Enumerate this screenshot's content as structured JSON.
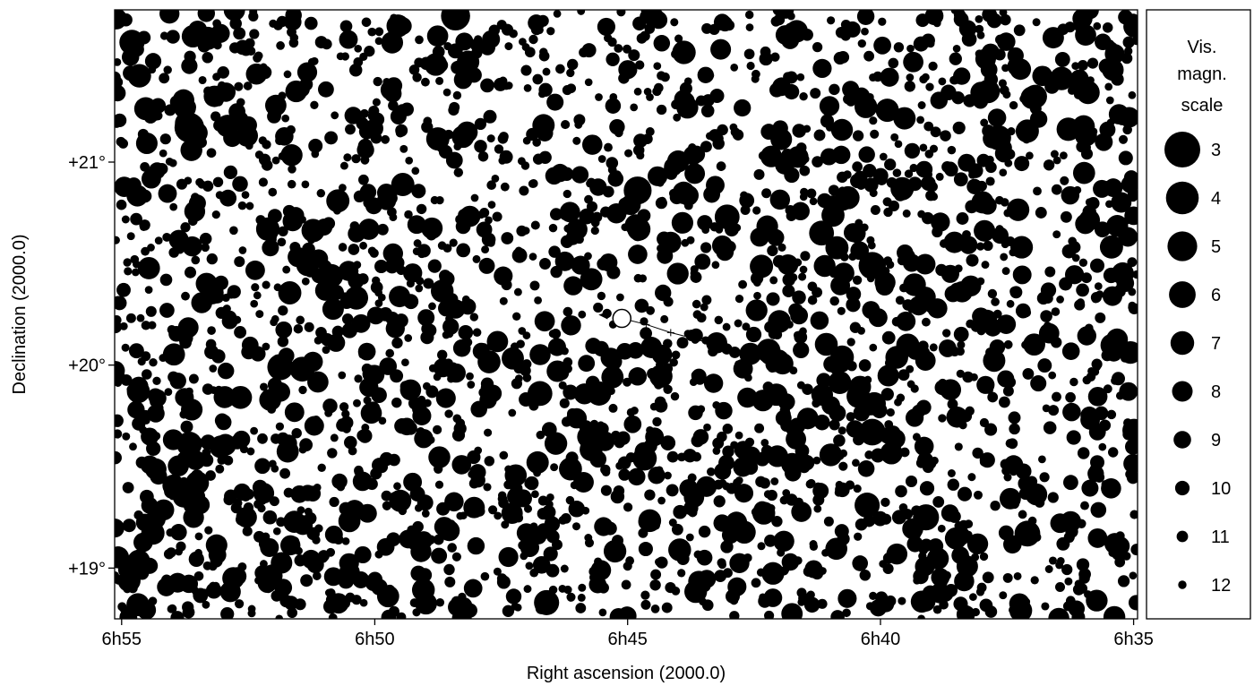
{
  "chart_data": {
    "type": "scatter",
    "title": "",
    "xlabel": "Right ascension (2000.0)",
    "ylabel": "Declination (2000.0)",
    "x_unit": "RA minutes (time)",
    "y_unit": "degrees",
    "xlim": [
      6.919,
      6.582
    ],
    "ylim": [
      18.75,
      21.75
    ],
    "x_ticks": [
      {
        "value": 6.9167,
        "label": "6h55"
      },
      {
        "value": 6.8333,
        "label": "6h50"
      },
      {
        "value": 6.75,
        "label": "6h45"
      },
      {
        "value": 6.6667,
        "label": "6h40"
      },
      {
        "value": 6.5833,
        "label": "6h35"
      }
    ],
    "y_ticks": [
      {
        "value": 21,
        "label": "+21°"
      },
      {
        "value": 20,
        "label": "+20°"
      },
      {
        "value": 19,
        "label": "+19°"
      }
    ],
    "grid": false,
    "legend": {
      "title_lines": [
        "Vis.",
        "magn.",
        "scale"
      ],
      "placement": "right",
      "entries": [
        {
          "mag": 3,
          "label": "3"
        },
        {
          "mag": 4,
          "label": "4"
        },
        {
          "mag": 5,
          "label": "5"
        },
        {
          "mag": 6,
          "label": "6"
        },
        {
          "mag": 7,
          "label": "7"
        },
        {
          "mag": 8,
          "label": "8"
        },
        {
          "mag": 9,
          "label": "9"
        },
        {
          "mag": 10,
          "label": "10"
        },
        {
          "mag": 11,
          "label": "11"
        },
        {
          "mag": 12,
          "label": "12"
        }
      ]
    },
    "bright_stars": [
      {
        "ra": 6.8944,
        "dec": 21.17,
        "mag": 5.0
      },
      {
        "ra": 6.8067,
        "dec": 21.72,
        "mag": 5.2
      },
      {
        "ra": 6.7467,
        "dec": 20.86,
        "mag": 5.6
      },
      {
        "ra": 6.6694,
        "dec": 20.49,
        "mag": 5.8
      },
      {
        "ra": 6.6861,
        "dec": 20.65,
        "mag": 6.6
      },
      {
        "ra": 6.6517,
        "dec": 19.25,
        "mag": 6.2
      },
      {
        "ra": 6.6183,
        "dec": 19.17,
        "mag": 6.3
      },
      {
        "ra": 6.6694,
        "dec": 19.67,
        "mag": 6.0
      },
      {
        "ra": 6.6711,
        "dec": 19.31,
        "mag": 6.5
      },
      {
        "ra": 6.8644,
        "dec": 19.99,
        "mag": 6.2
      },
      {
        "ra": 6.7172,
        "dec": 20.73,
        "mag": 6.6
      },
      {
        "ra": 6.7789,
        "dec": 19.86,
        "mag": 6.6
      },
      {
        "ra": 6.7594,
        "dec": 19.86,
        "mag": 6.8
      },
      {
        "ra": 6.6278,
        "dec": 21.12,
        "mag": 6.5
      },
      {
        "ra": 6.9133,
        "dec": 21.59,
        "mag": 6.5
      },
      {
        "ra": 6.8572,
        "dec": 19.98,
        "mag": 6.6
      },
      {
        "ra": 6.7444,
        "dec": 19.54,
        "mag": 6.8
      },
      {
        "ra": 6.7767,
        "dec": 18.83,
        "mag": 6.5
      },
      {
        "ra": 6.8944,
        "dec": 19.61,
        "mag": 6.5
      },
      {
        "ra": 6.7036,
        "dec": 20.07,
        "mag": 6.8
      }
    ],
    "moving_object": {
      "label": "",
      "position": {
        "ra": 6.7519,
        "dec": 20.23
      },
      "track": [
        {
          "ra": 6.7519,
          "dec": 20.23
        },
        {
          "ra": 6.7439,
          "dec": 20.2
        },
        {
          "ra": 6.7358,
          "dec": 20.16
        },
        {
          "ra": 6.7278,
          "dec": 20.13
        },
        {
          "ra": 6.7197,
          "dec": 20.09
        },
        {
          "ra": 6.715,
          "dec": 20.07
        }
      ]
    },
    "faint_star_seed": 20231
  }
}
